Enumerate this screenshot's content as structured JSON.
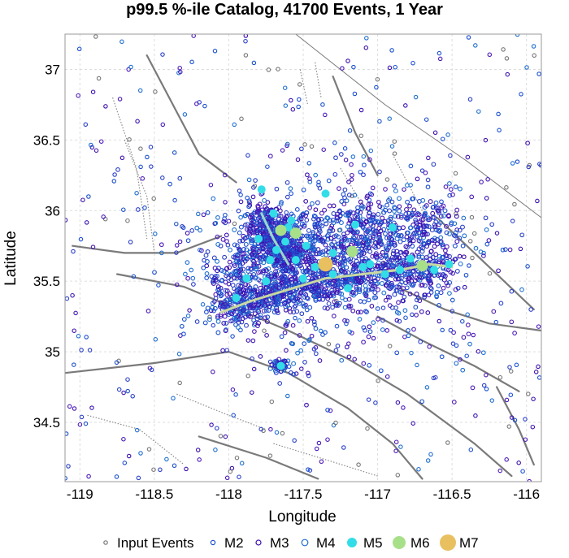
{
  "chart_data": {
    "type": "scatter",
    "title": "p99.5 %-ile Catalog, 41700 Events, 1 Year",
    "xlabel": "Longitude",
    "ylabel": "Latitude",
    "xlim": [
      -119.1,
      -115.9
    ],
    "ylim": [
      34.08,
      37.25
    ],
    "x_ticks": [
      -119,
      -118.5,
      -118,
      -117.5,
      -117,
      -116.5,
      -116
    ],
    "x_tick_labels": [
      "-119",
      "-118.5",
      "-118",
      "-117.5",
      "-117",
      "-116.5",
      "-116"
    ],
    "y_ticks": [
      34.5,
      35,
      35.5,
      36,
      36.5,
      37
    ],
    "y_tick_labels": [
      "34.5",
      "35",
      "35.5",
      "36",
      "36.5",
      "37"
    ],
    "grid": true,
    "legend_position": "bottom",
    "legend": [
      {
        "label": "Input Events",
        "marker": "ring",
        "color": "#777777"
      },
      {
        "label": "M2",
        "marker": "ring",
        "color": "#1a4fd0"
      },
      {
        "label": "M3",
        "marker": "ring",
        "color": "#3a10b0"
      },
      {
        "label": "M4",
        "marker": "ring",
        "color": "#1f6fd0"
      },
      {
        "label": "M5",
        "marker": "dot",
        "color": "#33dde8"
      },
      {
        "label": "M6",
        "marker": "dot",
        "color": "#a8e08a"
      },
      {
        "label": "M7",
        "marker": "dot",
        "color": "#e8c060"
      }
    ],
    "faults": [
      [
        [
          -118.05,
          35.28
        ],
        [
          -117.85,
          35.36
        ],
        [
          -117.6,
          35.44
        ],
        [
          -117.35,
          35.52
        ],
        [
          -117.1,
          35.55
        ],
        [
          -116.85,
          35.58
        ],
        [
          -116.65,
          35.62
        ],
        [
          -116.5,
          35.6
        ]
      ],
      [
        [
          -117.78,
          35.98
        ],
        [
          -117.7,
          35.8
        ],
        [
          -117.6,
          35.62
        ]
      ],
      [
        [
          -118.75,
          35.55
        ],
        [
          -118.3,
          35.46
        ],
        [
          -118.05,
          35.35
        ],
        [
          -117.6,
          35.15
        ],
        [
          -117.2,
          34.95
        ],
        [
          -116.8,
          34.7
        ],
        [
          -116.35,
          34.35
        ],
        [
          -116.1,
          34.12
        ]
      ],
      [
        [
          -119.05,
          35.75
        ],
        [
          -118.7,
          35.7
        ],
        [
          -118.35,
          35.7
        ],
        [
          -118.05,
          35.82
        ]
      ],
      [
        [
          -117.55,
          37.25
        ],
        [
          -116.95,
          36.75
        ],
        [
          -116.4,
          36.35
        ],
        [
          -115.9,
          35.95
        ]
      ],
      [
        [
          -119.1,
          34.85
        ],
        [
          -118.5,
          34.92
        ],
        [
          -118.0,
          35.0
        ],
        [
          -117.6,
          34.85
        ],
        [
          -117.2,
          34.6
        ],
        [
          -116.9,
          34.35
        ],
        [
          -116.7,
          34.1
        ]
      ],
      [
        [
          -117.0,
          35.25
        ],
        [
          -116.7,
          35.08
        ],
        [
          -116.35,
          34.9
        ],
        [
          -116.05,
          34.72
        ]
      ],
      [
        [
          -116.85,
          35.45
        ],
        [
          -116.55,
          35.3
        ],
        [
          -116.25,
          35.2
        ],
        [
          -115.9,
          35.15
        ]
      ],
      [
        [
          -118.2,
          34.4
        ],
        [
          -117.75,
          34.25
        ],
        [
          -117.4,
          34.1
        ]
      ],
      [
        [
          -118.55,
          37.1
        ],
        [
          -118.35,
          36.7
        ],
        [
          -118.2,
          36.4
        ],
        [
          -117.95,
          36.2
        ]
      ],
      [
        [
          -117.3,
          36.95
        ],
        [
          -117.15,
          36.55
        ],
        [
          -117.0,
          36.25
        ]
      ],
      [
        [
          -116.2,
          34.75
        ],
        [
          -116.05,
          34.45
        ],
        [
          -115.95,
          34.2
        ]
      ],
      [
        [
          -116.6,
          35.95
        ],
        [
          -116.35,
          35.7
        ],
        [
          -116.1,
          35.45
        ],
        [
          -115.95,
          35.3
        ]
      ]
    ],
    "dotted_faults": [
      [
        [
          -118.7,
          36.5
        ],
        [
          -118.55,
          36.1
        ],
        [
          -118.5,
          35.7
        ]
      ],
      [
        [
          -118.78,
          36.8
        ],
        [
          -118.62,
          36.3
        ],
        [
          -118.55,
          35.8
        ]
      ],
      [
        [
          -117.25,
          36.3
        ],
        [
          -117.05,
          35.95
        ]
      ],
      [
        [
          -116.9,
          36.4
        ],
        [
          -116.7,
          36.0
        ]
      ],
      [
        [
          -117.52,
          37.0
        ],
        [
          -117.47,
          36.75
        ]
      ],
      [
        [
          -117.42,
          37.05
        ],
        [
          -117.38,
          36.8
        ]
      ],
      [
        [
          -118.95,
          34.55
        ],
        [
          -118.6,
          34.45
        ],
        [
          -118.3,
          34.2
        ]
      ],
      [
        [
          -117.7,
          34.35
        ],
        [
          -117.3,
          34.22
        ],
        [
          -117.0,
          34.12
        ]
      ],
      [
        [
          -118.35,
          34.7
        ],
        [
          -118.0,
          34.55
        ],
        [
          -117.75,
          34.45
        ]
      ]
    ],
    "cluster_seed": 7,
    "cluster_axis": [
      [
        -118.05,
        35.28
      ],
      [
        -117.6,
        35.44
      ],
      [
        -117.1,
        35.55
      ],
      [
        -116.5,
        35.6
      ]
    ],
    "cluster_count": 1700,
    "background_count": 420,
    "m5_events": [
      [
        -117.78,
        36.15
      ],
      [
        -117.58,
        35.93
      ],
      [
        -117.35,
        36.12
      ],
      [
        -117.15,
        35.9
      ],
      [
        -116.9,
        35.88
      ],
      [
        -117.68,
        35.72
      ],
      [
        -117.55,
        35.65
      ],
      [
        -117.42,
        35.6
      ],
      [
        -117.3,
        35.55
      ],
      [
        -117.18,
        35.72
      ],
      [
        -117.05,
        35.62
      ],
      [
        -116.95,
        35.55
      ],
      [
        -116.78,
        35.66
      ],
      [
        -116.62,
        35.58
      ],
      [
        -116.52,
        35.62
      ],
      [
        -117.8,
        35.8
      ],
      [
        -117.72,
        35.65
      ],
      [
        -117.62,
        35.78
      ],
      [
        -117.88,
        35.52
      ],
      [
        -117.75,
        35.5
      ],
      [
        -117.5,
        35.52
      ],
      [
        -117.2,
        35.45
      ],
      [
        -117.95,
        35.38
      ],
      [
        -117.65,
        34.9
      ],
      [
        -117.7,
        35.98
      ],
      [
        -117.6,
        35.88
      ],
      [
        -117.48,
        35.75
      ],
      [
        -117.3,
        35.7
      ],
      [
        -117.1,
        35.6
      ],
      [
        -116.85,
        35.58
      ]
    ],
    "m6_events": [
      [
        -117.65,
        35.86
      ],
      [
        -117.55,
        35.84
      ],
      [
        -117.17,
        35.71
      ],
      [
        -116.7,
        35.61
      ]
    ],
    "m7_events": [
      [
        -117.35,
        35.62
      ]
    ]
  }
}
